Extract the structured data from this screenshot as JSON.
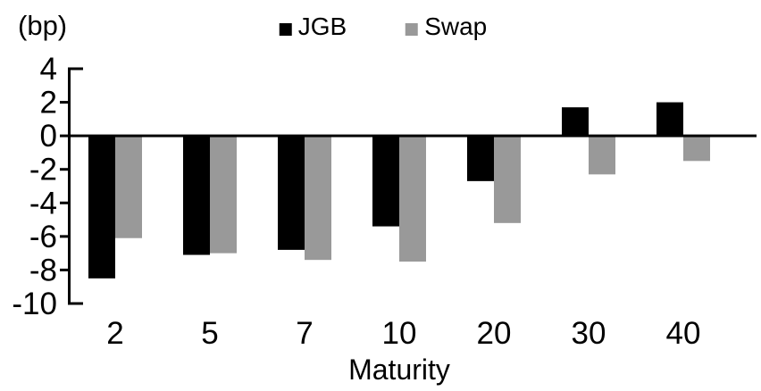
{
  "chart_data": {
    "type": "bar",
    "title": "",
    "unit_label": "(bp)",
    "xlabel": "Maturity",
    "ylabel": "",
    "categories": [
      "2",
      "5",
      "7",
      "10",
      "20",
      "30",
      "40"
    ],
    "series": [
      {
        "name": "JGB",
        "color": "#000000",
        "values": [
          -8.5,
          -7.1,
          -6.8,
          -5.4,
          -2.7,
          1.7,
          2.0
        ]
      },
      {
        "name": "Swap",
        "color": "#999999",
        "values": [
          -6.1,
          -7.0,
          -7.4,
          -7.5,
          -5.2,
          -2.3,
          -1.5
        ]
      }
    ],
    "ylim": [
      -10,
      4
    ],
    "yticks": [
      4,
      2,
      0,
      -2,
      -4,
      -6,
      -8,
      -10
    ],
    "axis_color": "#000000",
    "background": "#ffffff",
    "grid": false,
    "legend_position": "top-center"
  }
}
